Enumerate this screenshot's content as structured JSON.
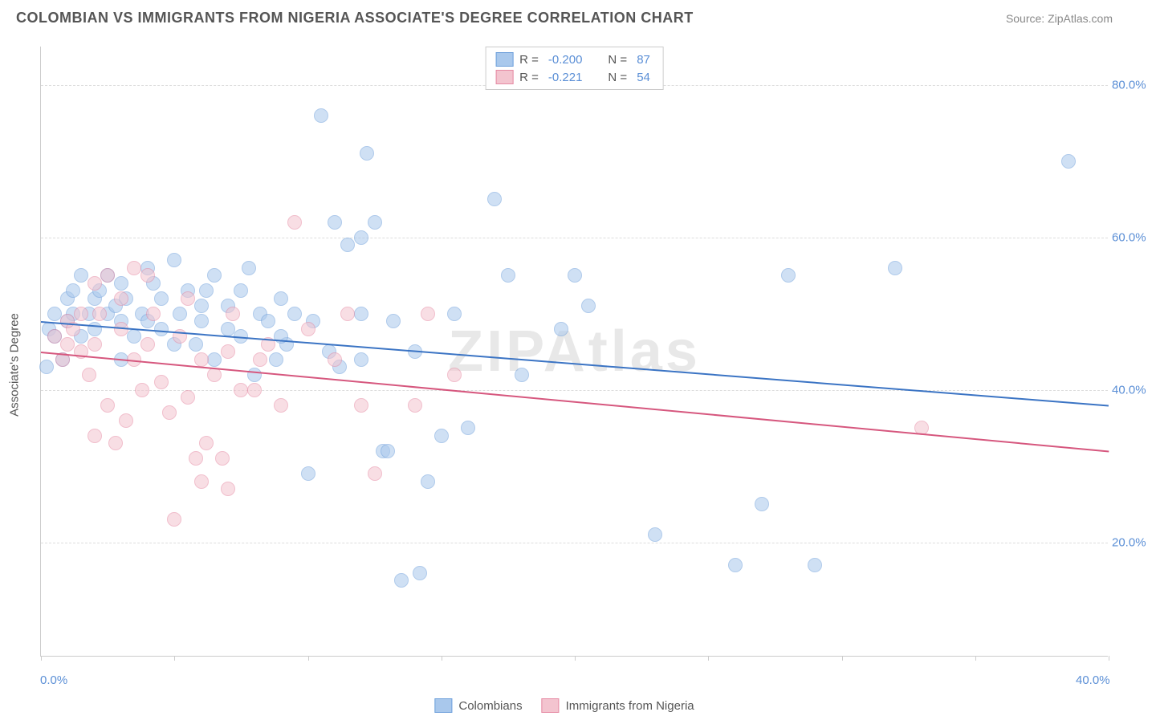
{
  "header": {
    "title": "COLOMBIAN VS IMMIGRANTS FROM NIGERIA ASSOCIATE'S DEGREE CORRELATION CHART",
    "source": "Source: ZipAtlas.com"
  },
  "chart": {
    "type": "scatter",
    "ylabel": "Associate's Degree",
    "watermark": "ZIPAtlas",
    "xlim": [
      0,
      40
    ],
    "ylim": [
      5,
      85
    ],
    "y_ticks": [
      20,
      40,
      60,
      80
    ],
    "y_tick_labels": [
      "20.0%",
      "40.0%",
      "60.0%",
      "80.0%"
    ],
    "x_ticks": [
      0,
      5,
      10,
      15,
      20,
      25,
      30,
      35,
      40
    ],
    "x_tick_labels_shown": {
      "0": "0.0%",
      "40": "40.0%"
    },
    "grid_color": "#dddddd",
    "axis_color": "#cccccc",
    "background_color": "#ffffff",
    "tick_label_color": "#5b8fd6",
    "marker_radius": 9,
    "marker_opacity": 0.55,
    "series": [
      {
        "name": "Colombians",
        "color_fill": "#a9c8ec",
        "color_stroke": "#6fa0db",
        "R": "-0.200",
        "N": "87",
        "trend": {
          "x1": 0,
          "y1": 49,
          "x2": 40,
          "y2": 38,
          "color": "#3b74c4",
          "width": 2
        },
        "points": [
          [
            0.3,
            48
          ],
          [
            0.5,
            47
          ],
          [
            0.5,
            50
          ],
          [
            0.8,
            44
          ],
          [
            1.0,
            49
          ],
          [
            1.0,
            52
          ],
          [
            1.2,
            50
          ],
          [
            1.2,
            53
          ],
          [
            1.5,
            47
          ],
          [
            1.5,
            55
          ],
          [
            1.8,
            50
          ],
          [
            2.0,
            52
          ],
          [
            2.0,
            48
          ],
          [
            2.2,
            53
          ],
          [
            2.5,
            55
          ],
          [
            2.5,
            50
          ],
          [
            2.8,
            51
          ],
          [
            3.0,
            49
          ],
          [
            3.0,
            54
          ],
          [
            3.2,
            52
          ],
          [
            3.5,
            47
          ],
          [
            3.8,
            50
          ],
          [
            4.0,
            56
          ],
          [
            4.0,
            49
          ],
          [
            4.2,
            54
          ],
          [
            4.5,
            52
          ],
          [
            5.0,
            46
          ],
          [
            5.0,
            57
          ],
          [
            5.2,
            50
          ],
          [
            5.5,
            53
          ],
          [
            5.8,
            46
          ],
          [
            6.0,
            51
          ],
          [
            6.0,
            49
          ],
          [
            6.2,
            53
          ],
          [
            6.5,
            44
          ],
          [
            7.0,
            51
          ],
          [
            7.0,
            48
          ],
          [
            7.5,
            47
          ],
          [
            7.8,
            56
          ],
          [
            8.0,
            42
          ],
          [
            8.2,
            50
          ],
          [
            8.5,
            49
          ],
          [
            8.8,
            44
          ],
          [
            9.0,
            52
          ],
          [
            9.2,
            46
          ],
          [
            9.5,
            50
          ],
          [
            10.0,
            29
          ],
          [
            10.2,
            49
          ],
          [
            10.5,
            76
          ],
          [
            10.8,
            45
          ],
          [
            11.0,
            62
          ],
          [
            11.2,
            43
          ],
          [
            11.5,
            59
          ],
          [
            12.0,
            44
          ],
          [
            12.0,
            50
          ],
          [
            12.2,
            71
          ],
          [
            12.5,
            62
          ],
          [
            12.8,
            32
          ],
          [
            13.0,
            32
          ],
          [
            13.2,
            49
          ],
          [
            13.5,
            15
          ],
          [
            14.0,
            45
          ],
          [
            14.2,
            16
          ],
          [
            14.5,
            28
          ],
          [
            15.0,
            34
          ],
          [
            15.5,
            50
          ],
          [
            16.0,
            35
          ],
          [
            17.0,
            65
          ],
          [
            17.5,
            55
          ],
          [
            18.0,
            42
          ],
          [
            19.5,
            48
          ],
          [
            20.0,
            55
          ],
          [
            20.5,
            51
          ],
          [
            23.0,
            21
          ],
          [
            26.0,
            17
          ],
          [
            27.0,
            25
          ],
          [
            28.0,
            55
          ],
          [
            29.0,
            17
          ],
          [
            32.0,
            56
          ],
          [
            38.5,
            70
          ],
          [
            0.2,
            43
          ],
          [
            3.0,
            44
          ],
          [
            6.5,
            55
          ],
          [
            9.0,
            47
          ],
          [
            12.0,
            60
          ],
          [
            4.5,
            48
          ],
          [
            7.5,
            53
          ]
        ]
      },
      {
        "name": "Immigrants from Nigeria",
        "color_fill": "#f3c4cf",
        "color_stroke": "#e68aa3",
        "R": "-0.221",
        "N": "54",
        "trend": {
          "x1": 0,
          "y1": 45,
          "x2": 40,
          "y2": 32,
          "color": "#d6577e",
          "width": 2
        },
        "points": [
          [
            0.5,
            47
          ],
          [
            0.8,
            44
          ],
          [
            1.0,
            46
          ],
          [
            1.0,
            49
          ],
          [
            1.2,
            48
          ],
          [
            1.5,
            45
          ],
          [
            1.5,
            50
          ],
          [
            1.8,
            42
          ],
          [
            2.0,
            34
          ],
          [
            2.0,
            46
          ],
          [
            2.2,
            50
          ],
          [
            2.5,
            38
          ],
          [
            2.5,
            55
          ],
          [
            2.8,
            33
          ],
          [
            3.0,
            48
          ],
          [
            3.0,
            52
          ],
          [
            3.2,
            36
          ],
          [
            3.5,
            56
          ],
          [
            3.5,
            44
          ],
          [
            3.8,
            40
          ],
          [
            4.0,
            46
          ],
          [
            4.0,
            55
          ],
          [
            4.2,
            50
          ],
          [
            4.5,
            41
          ],
          [
            4.8,
            37
          ],
          [
            5.0,
            23
          ],
          [
            5.2,
            47
          ],
          [
            5.5,
            39
          ],
          [
            5.5,
            52
          ],
          [
            5.8,
            31
          ],
          [
            6.0,
            44
          ],
          [
            6.0,
            28
          ],
          [
            6.2,
            33
          ],
          [
            6.5,
            42
          ],
          [
            6.8,
            31
          ],
          [
            7.0,
            27
          ],
          [
            7.0,
            45
          ],
          [
            7.2,
            50
          ],
          [
            7.5,
            40
          ],
          [
            8.0,
            40
          ],
          [
            8.2,
            44
          ],
          [
            8.5,
            46
          ],
          [
            9.0,
            38
          ],
          [
            9.5,
            62
          ],
          [
            10.0,
            48
          ],
          [
            11.0,
            44
          ],
          [
            11.5,
            50
          ],
          [
            12.0,
            38
          ],
          [
            12.5,
            29
          ],
          [
            14.0,
            38
          ],
          [
            14.5,
            50
          ],
          [
            15.5,
            42
          ],
          [
            33.0,
            35
          ],
          [
            2.0,
            54
          ]
        ]
      }
    ]
  },
  "legend_top": {
    "rows": [
      {
        "swatch_fill": "#a9c8ec",
        "swatch_stroke": "#6fa0db",
        "R_label": "R =",
        "R_val": "-0.200",
        "N_label": "N =",
        "N_val": "87"
      },
      {
        "swatch_fill": "#f3c4cf",
        "swatch_stroke": "#e68aa3",
        "R_label": "R =",
        "R_val": "-0.221",
        "N_label": "N =",
        "N_val": "54"
      }
    ]
  },
  "legend_bottom": {
    "items": [
      {
        "swatch_fill": "#a9c8ec",
        "swatch_stroke": "#6fa0db",
        "label": "Colombians"
      },
      {
        "swatch_fill": "#f3c4cf",
        "swatch_stroke": "#e68aa3",
        "label": "Immigrants from Nigeria"
      }
    ]
  }
}
